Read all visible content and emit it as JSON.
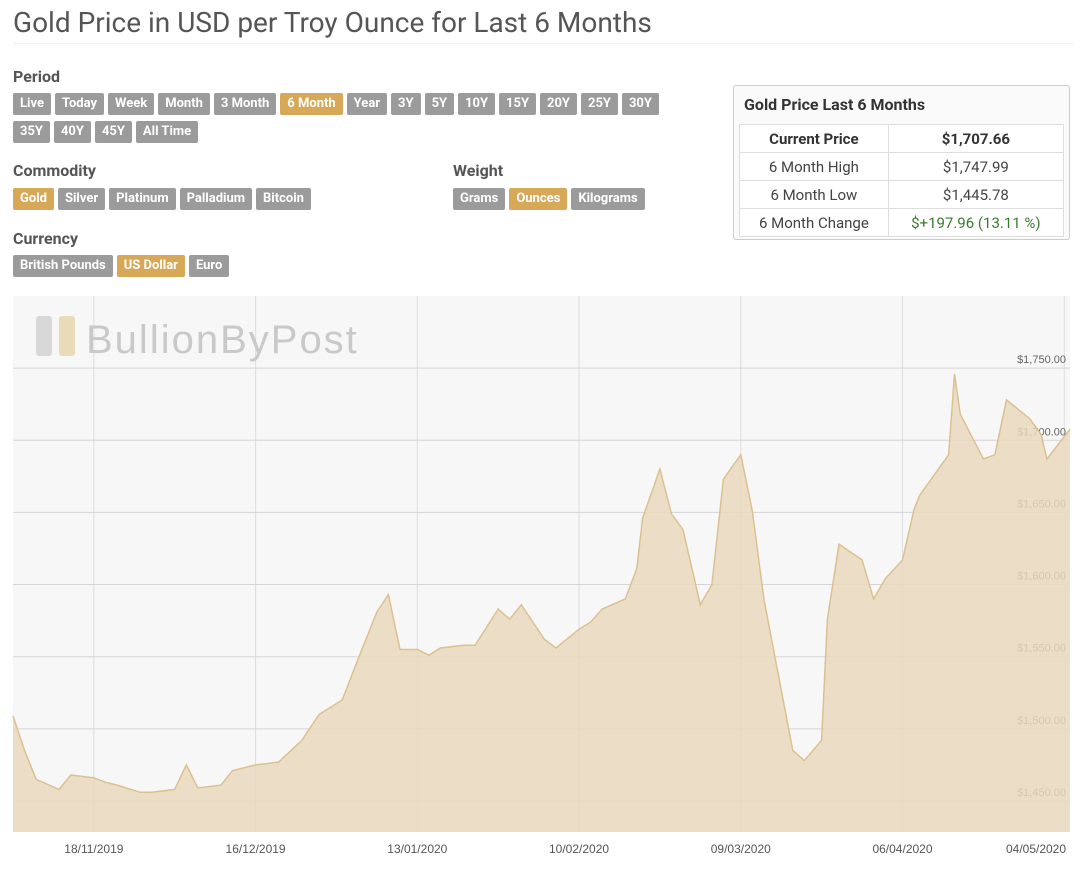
{
  "header": {
    "title": "Gold Price in USD per Troy Ounce for Last 6 Months"
  },
  "period": {
    "label": "Period",
    "options": [
      "Live",
      "Today",
      "Week",
      "Month",
      "3 Month",
      "6 Month",
      "Year",
      "3Y",
      "5Y",
      "10Y",
      "15Y",
      "20Y",
      "25Y",
      "30Y",
      "35Y",
      "40Y",
      "45Y",
      "All Time"
    ],
    "selected": 5
  },
  "commodity": {
    "label": "Commodity",
    "options": [
      "Gold",
      "Silver",
      "Platinum",
      "Palladium",
      "Bitcoin"
    ],
    "selected": 0
  },
  "weight": {
    "label": "Weight",
    "options": [
      "Grams",
      "Ounces",
      "Kilograms"
    ],
    "selected": 1
  },
  "currency": {
    "label": "Currency",
    "options": [
      "British Pounds",
      "US Dollar",
      "Euro"
    ],
    "selected": 1
  },
  "stats": {
    "title": "Gold Price Last 6 Months",
    "rows": [
      [
        "Current Price",
        "$1,707.66"
      ],
      [
        "6 Month High",
        "$1,747.99"
      ],
      [
        "6 Month Low",
        "$1,445.78"
      ],
      [
        "6 Month Change",
        "$+197.96 (13.11 %)"
      ]
    ]
  },
  "chart_data": {
    "type": "area",
    "watermark": "BullionByPost",
    "color": "#dcc190",
    "fill": "#ead9bd",
    "x": [
      "04/11/2019",
      "06/11/2019",
      "08/11/2019",
      "12/11/2019",
      "14/11/2019",
      "18/11/2019",
      "20/11/2019",
      "22/11/2019",
      "26/11/2019",
      "28/11/2019",
      "02/12/2019",
      "04/12/2019",
      "06/12/2019",
      "10/12/2019",
      "12/12/2019",
      "16/12/2019",
      "18/12/2019",
      "20/12/2019",
      "24/12/2019",
      "27/12/2019",
      "31/12/2019",
      "03/01/2020",
      "06/01/2020",
      "08/01/2020",
      "10/01/2020",
      "13/01/2020",
      "15/01/2020",
      "17/01/2020",
      "21/01/2020",
      "23/01/2020",
      "27/01/2020",
      "29/01/2020",
      "31/01/2020",
      "04/02/2020",
      "06/02/2020",
      "10/02/2020",
      "12/02/2020",
      "14/02/2020",
      "18/02/2020",
      "20/02/2020",
      "21/02/2020",
      "24/02/2020",
      "26/02/2020",
      "28/02/2020",
      "02/03/2020",
      "04/03/2020",
      "06/03/2020",
      "09/03/2020",
      "11/03/2020",
      "13/03/2020",
      "16/03/2020",
      "18/03/2020",
      "20/03/2020",
      "23/03/2020",
      "24/03/2020",
      "26/03/2020",
      "30/03/2020",
      "01/04/2020",
      "03/04/2020",
      "06/04/2020",
      "08/04/2020",
      "09/04/2020",
      "14/04/2020",
      "15/04/2020",
      "16/04/2020",
      "20/04/2020",
      "22/04/2020",
      "24/04/2020",
      "28/04/2020",
      "30/04/2020",
      "01/05/2020",
      "05/05/2020"
    ],
    "values": [
      1509,
      1485,
      1465,
      1458,
      1468,
      1466,
      1463,
      1461,
      1456,
      1456,
      1458,
      1475,
      1459,
      1461,
      1471,
      1475,
      1476,
      1477,
      1492,
      1510,
      1520,
      1551,
      1581,
      1593,
      1555,
      1555,
      1551,
      1556,
      1558,
      1558,
      1583,
      1576,
      1586,
      1562,
      1556,
      1569,
      1574,
      1583,
      1590,
      1611,
      1646,
      1680,
      1649,
      1638,
      1586,
      1600,
      1673,
      1690,
      1651,
      1590,
      1527,
      1485,
      1478,
      1492,
      1576,
      1628,
      1617,
      1590,
      1604,
      1617,
      1652,
      1662,
      1690,
      1746,
      1718,
      1687,
      1690,
      1728,
      1715,
      1704,
      1687,
      1707.66
    ],
    "xlim": [
      "04/11/2019",
      "05/05/2020"
    ],
    "xticks": [
      "18/11/2019",
      "16/12/2019",
      "13/01/2020",
      "10/02/2020",
      "09/03/2020",
      "06/04/2020",
      "04/05/2020"
    ],
    "ylim": [
      1428.5,
      1800
    ],
    "yticks": [
      {
        "value": 1450,
        "label": "$1,450.00"
      },
      {
        "value": 1500,
        "label": "$1,500.00"
      },
      {
        "value": 1550,
        "label": "$1,550.00"
      },
      {
        "value": 1600,
        "label": "$1,600.00"
      },
      {
        "value": 1650,
        "label": "$1,650.00"
      },
      {
        "value": 1700,
        "label": "$1,700.00"
      },
      {
        "value": 1750,
        "label": "$1,750.00"
      }
    ],
    "grid": true
  }
}
